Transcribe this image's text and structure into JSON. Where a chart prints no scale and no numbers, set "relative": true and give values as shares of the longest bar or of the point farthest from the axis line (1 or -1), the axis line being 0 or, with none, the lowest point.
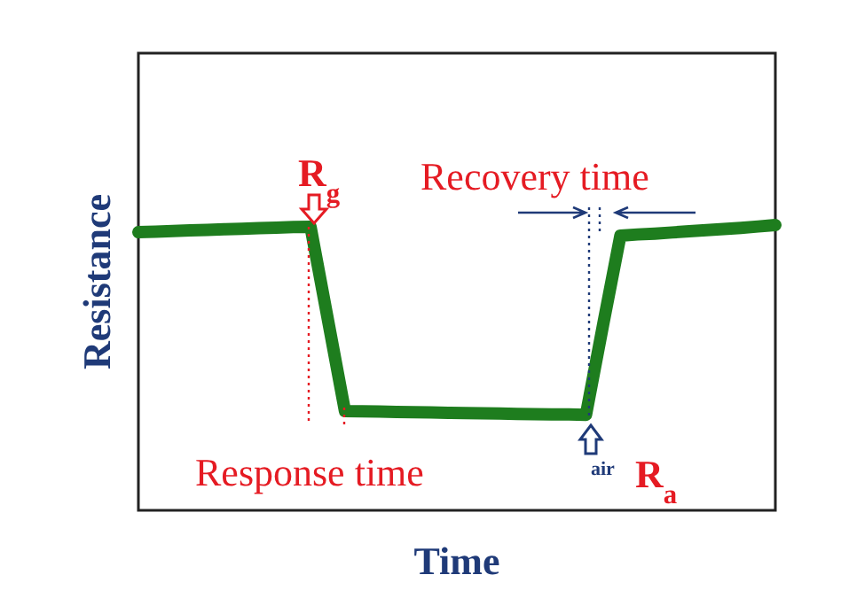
{
  "chart_data": {
    "type": "line",
    "relative": true,
    "xlabel": "Time",
    "ylabel": "Resistance",
    "line_style": "solid",
    "categories": [
      null,
      null,
      null,
      null,
      null,
      null,
      null,
      null,
      null,
      null,
      null,
      null,
      null,
      null,
      null,
      null,
      null,
      null,
      null,
      null,
      null,
      null,
      null,
      null,
      null,
      null,
      null,
      null,
      null,
      null,
      null,
      null,
      null,
      null,
      null,
      null,
      null,
      null
    ],
    "series": [
      {
        "color": "#1e7d1e",
        "values": [
          0.975,
          0.977,
          0.979,
          0.981,
          0.983,
          0.985,
          0.987,
          0.989,
          0.991,
          0.993,
          0.994,
          0.671,
          0.348,
          0.347,
          0.346,
          0.345,
          0.344,
          0.343,
          0.342,
          0.341,
          0.34,
          0.339,
          0.338,
          0.337,
          0.336,
          0.336,
          0.335,
          0.652,
          0.963,
          0.967,
          0.97,
          0.974,
          0.978,
          0.982,
          0.986,
          0.99,
          0.995,
          1.0
        ]
      }
    ],
    "annotations": [
      "R$_{g}$",
      "Recovery time",
      "Response time",
      "air",
      "R$_{a}$"
    ]
  }
}
